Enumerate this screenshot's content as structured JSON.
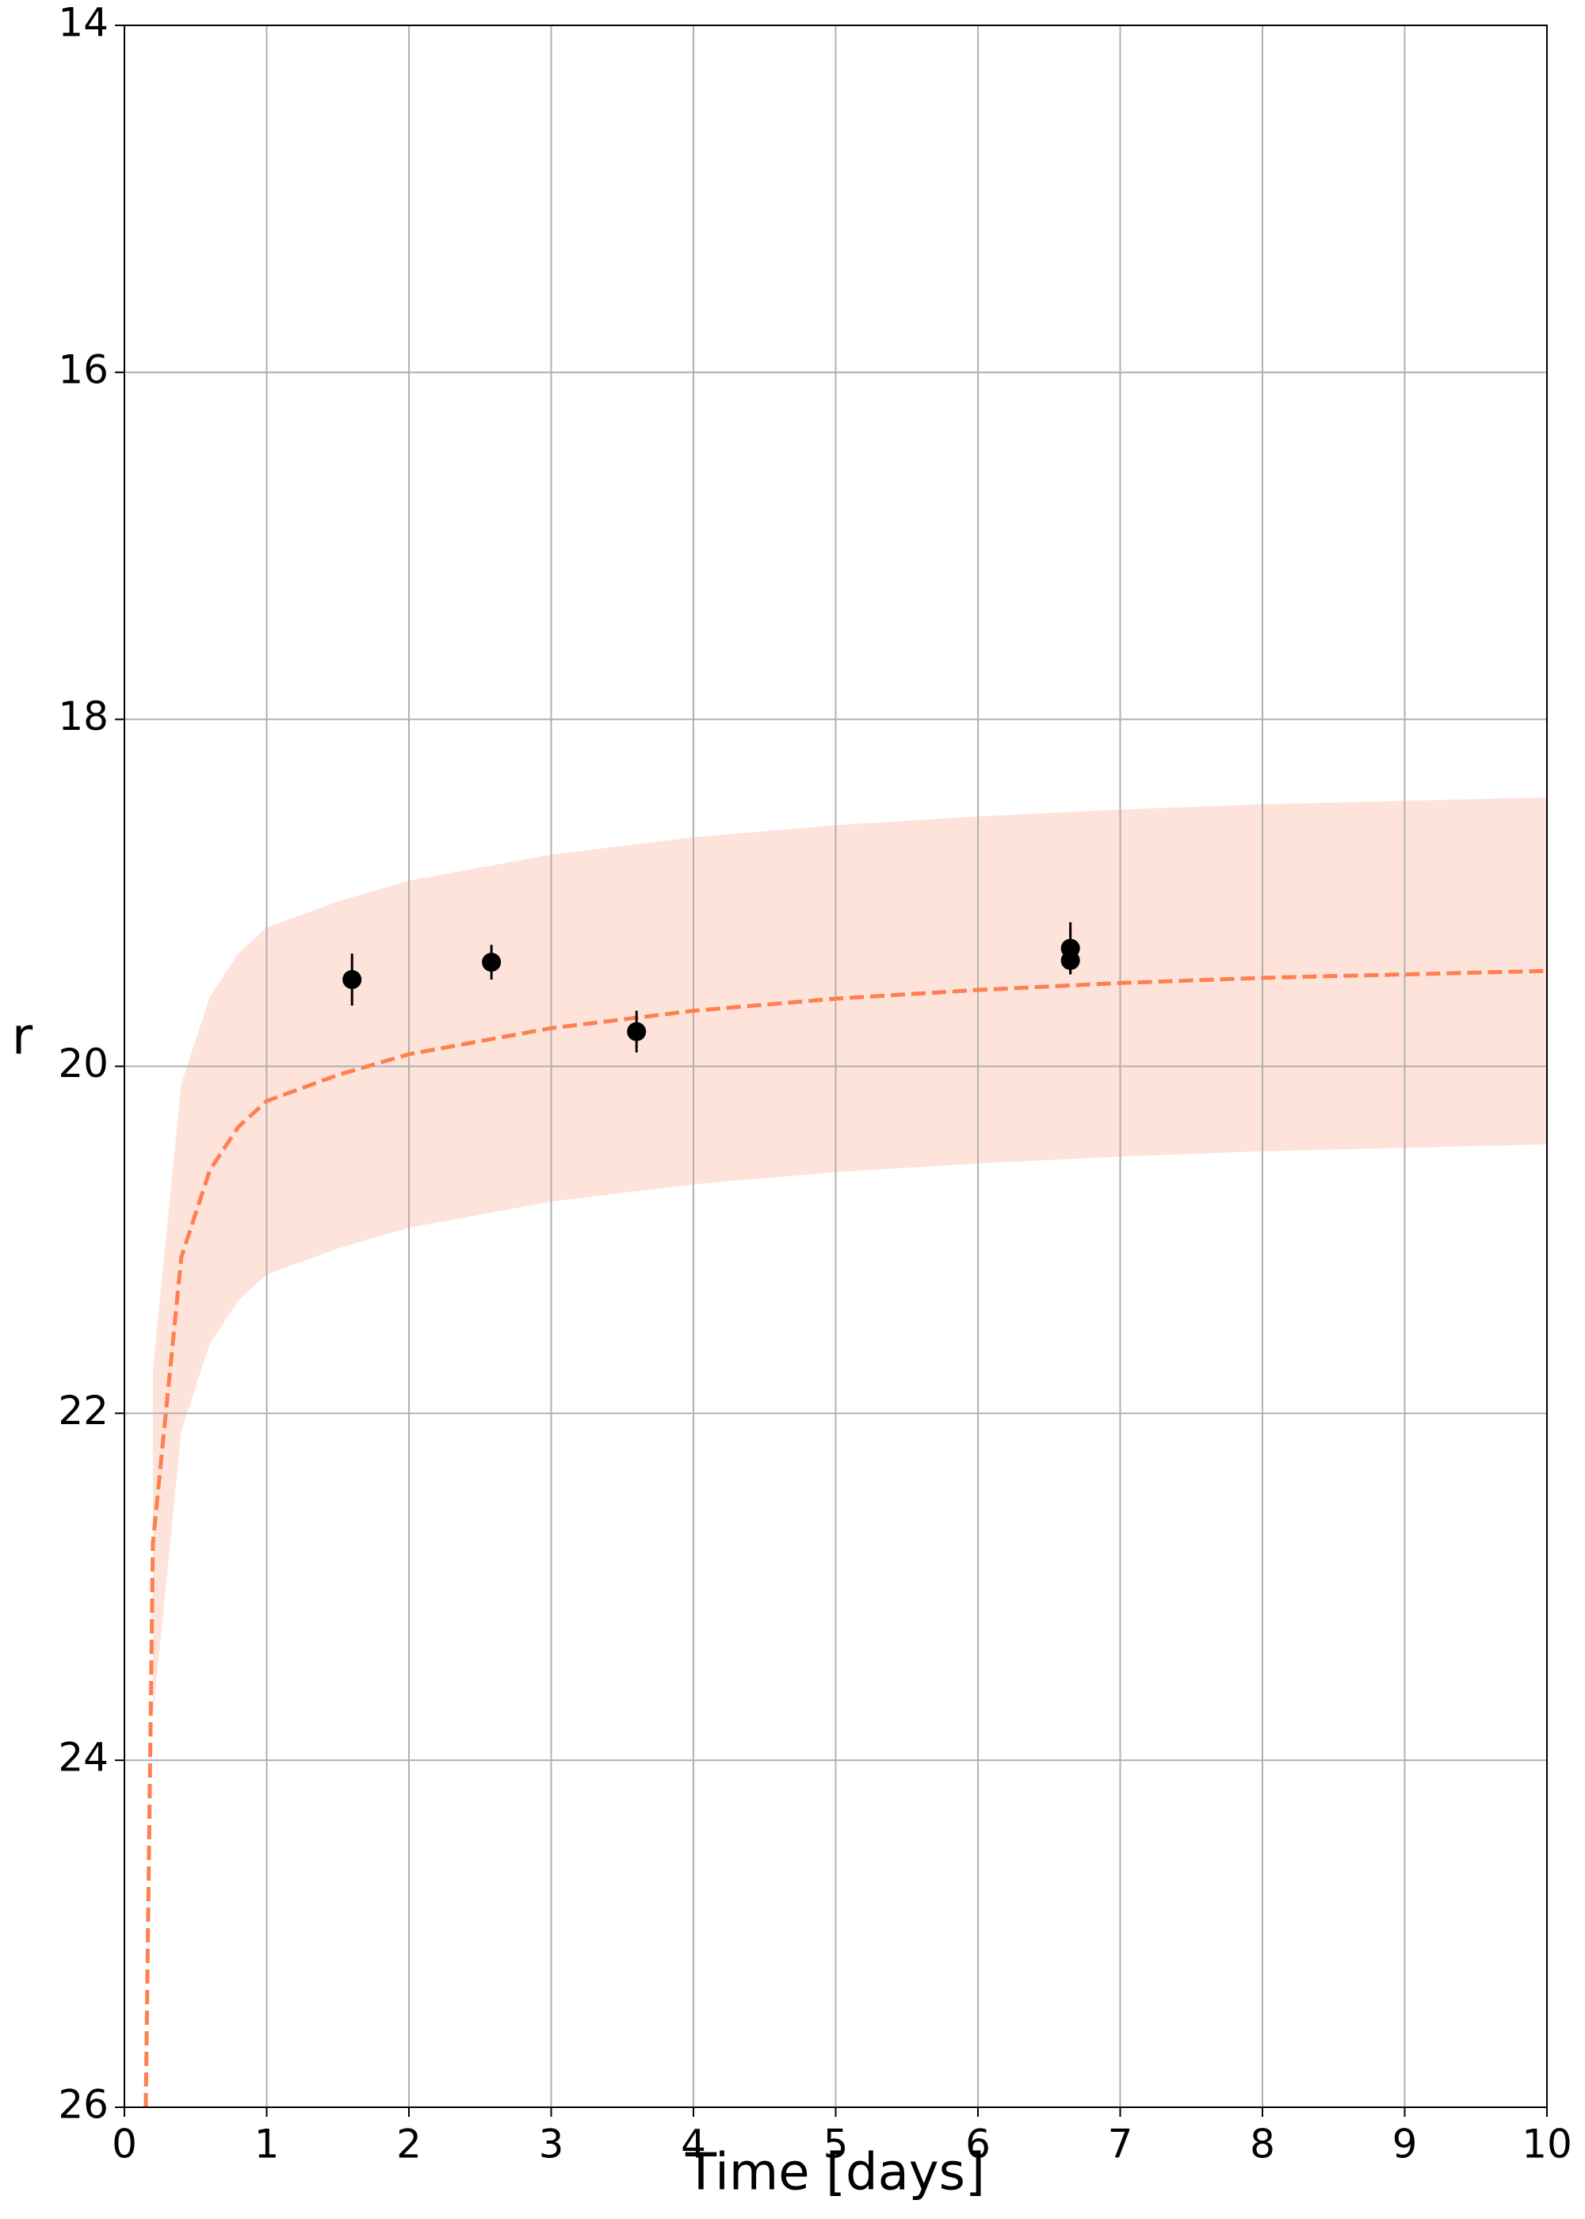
{
  "chart_data": {
    "type": "scatter",
    "xlabel": "Time [days]",
    "ylabel": "r",
    "xlim": [
      0,
      10
    ],
    "ylim": [
      14,
      26
    ],
    "y_inverted": true,
    "xticks": [
      0,
      1,
      2,
      3,
      4,
      5,
      6,
      7,
      8,
      9,
      10
    ],
    "yticks": [
      14,
      16,
      18,
      20,
      22,
      24,
      26
    ],
    "grid": true,
    "points": {
      "color": "#000000",
      "x": [
        1.6,
        2.58,
        3.6,
        6.65,
        6.65
      ],
      "values": [
        19.5,
        19.4,
        19.8,
        19.32,
        19.39
      ],
      "errors": [
        0.15,
        0.1,
        0.12,
        0.15,
        0.08
      ]
    },
    "model": {
      "color": "#ff7f50",
      "band_color": "#fee3da",
      "x": [
        0.15,
        0.2,
        0.4,
        0.6,
        0.8,
        1,
        1.5,
        2,
        3,
        4,
        5,
        6,
        7,
        8,
        9,
        10
      ],
      "values": [
        26,
        22.75,
        21.1,
        20.6,
        20.35,
        20.2,
        20.05,
        19.93,
        19.78,
        19.68,
        19.61,
        19.56,
        19.52,
        19.49,
        19.47,
        19.45
      ],
      "band_low": [
        null,
        21.75,
        20.1,
        19.6,
        19.35,
        19.2,
        19.05,
        18.93,
        18.78,
        18.68,
        18.61,
        18.56,
        18.52,
        18.49,
        18.47,
        18.45
      ],
      "band_high": [
        null,
        23.75,
        22.1,
        21.6,
        21.35,
        21.2,
        21.05,
        20.93,
        20.78,
        20.68,
        20.61,
        20.56,
        20.52,
        20.49,
        20.47,
        20.45
      ]
    }
  }
}
